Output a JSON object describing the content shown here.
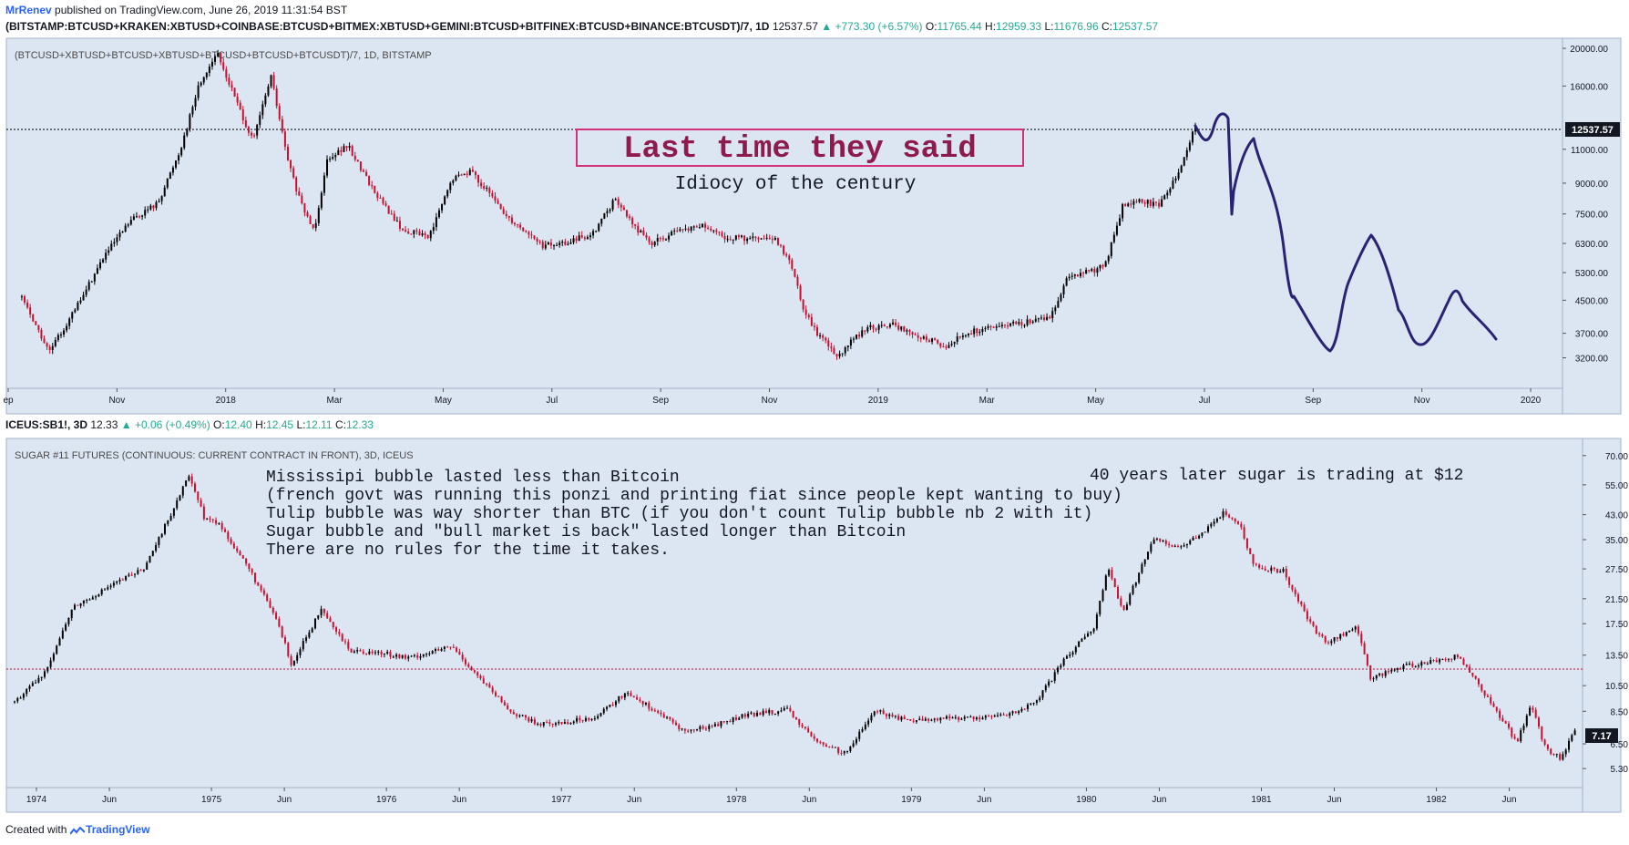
{
  "header": {
    "username": "MrRenev",
    "published": "published on TradingView.com, June 26, 2019 11:31:54 BST",
    "symbol1": "(BITSTAMP:BTCUSD+KRAKEN:XBTUSD+COINBASE:BTCUSD+BITMEX:XBTUSD+GEMINI:BTCUSD+BITFINEX:BTCUSD+BINANCE:BTCUSDT)/7, 1D",
    "price1": "12537.57",
    "change1": "▲ +773.30 (+6.57%)",
    "o1_label": "O:",
    "o1": "11765.44",
    "h1_label": "H:",
    "h1": "12959.33",
    "l1_label": "L:",
    "l1": "11676.96",
    "c1_label": "C:",
    "c1": "12537.57"
  },
  "pane1": {
    "title": "(BTCUSD+XBTUSD+BTCUSD+XBTUSD+BTCUSD+BTCUSD+BTCUSDT)/7, 1D, BITSTAMP",
    "price_label": "12537.57",
    "annotation_box": "Last time they said",
    "annotation_sub": "Idiocy of the century"
  },
  "header2": {
    "symbol": "ICEUS:SB1!, 3D",
    "price": "12.33",
    "change": "▲ +0.06 (+0.49%)",
    "o_label": "O:",
    "o": "12.40",
    "h_label": "H:",
    "h": "12.45",
    "l_label": "L:",
    "l": "12.11",
    "c_label": "C:",
    "c": "12.33"
  },
  "pane2": {
    "title": "SUGAR #11 FUTURES (CONTINUOUS: CURRENT CONTRACT IN FRONT), 3D, ICEUS",
    "price_label": "7.17",
    "notes": [
      "Mississipi bubble lasted less than Bitcoin",
      "(french govt was running this ponzi and printing fiat since people kept wanting to buy)",
      "Tulip bubble was way shorter than BTC (if you don't count Tulip bubble nb 2 with it)",
      "Sugar bubble and \"bull market is back\" lasted longer than Bitcoin",
      "There are no rules for the time it takes."
    ],
    "note_right": "40 years later sugar is trading at $12"
  },
  "footer": {
    "created": "Created with",
    "brand": "TradingView"
  },
  "colors": {
    "up": "#000000",
    "down": "#c8102e",
    "bg": "#dce6f2",
    "drawing": "#2a2272",
    "box": "#d2307a",
    "accent": "#22ab94"
  },
  "chart_data": [
    {
      "type": "candlestick",
      "title": "(BTCUSD+XBTUSD+BTCUSD+XBTUSD+BTCUSD+BTCUSD+BTCUSDT)/7, 1D, BITSTAMP",
      "x_ticks": [
        "ep",
        "Nov",
        "2018",
        "Mar",
        "May",
        "Jul",
        "Sep",
        "Nov",
        "2019",
        "Mar",
        "May",
        "Jul",
        "Sep",
        "Nov",
        "2020"
      ],
      "y_ticks": [
        20000,
        16000,
        11000,
        9000,
        7500,
        6300,
        5300,
        4500,
        3700,
        3200
      ],
      "y_scale": "log",
      "ylim": [
        2700,
        21000
      ],
      "current_price": 12537.57,
      "close_path": [
        [
          "2017-09",
          4600
        ],
        [
          "2017-09",
          3300
        ],
        [
          "2017-10",
          4300
        ],
        [
          "2017-10",
          5800
        ],
        [
          "2017-11",
          7200
        ],
        [
          "2017-11",
          8000
        ],
        [
          "2017-12",
          11000
        ],
        [
          "2017-12",
          16000
        ],
        [
          "2017-12",
          19500
        ],
        [
          "2018-01",
          15000
        ],
        [
          "2018-01",
          11500
        ],
        [
          "2018-01",
          17000
        ],
        [
          "2018-02",
          10500
        ],
        [
          "2018-02",
          8000
        ],
        [
          "2018-02",
          6800
        ],
        [
          "2018-02",
          10500
        ],
        [
          "2018-03",
          11200
        ],
        [
          "2018-03",
          8500
        ],
        [
          "2018-04",
          6800
        ],
        [
          "2018-04",
          6600
        ],
        [
          "2018-05",
          9200
        ],
        [
          "2018-05",
          9700
        ],
        [
          "2018-05",
          8500
        ],
        [
          "2018-06",
          7400
        ],
        [
          "2018-06",
          6800
        ],
        [
          "2018-06",
          6200
        ],
        [
          "2018-07",
          6300
        ],
        [
          "2018-07",
          6700
        ],
        [
          "2018-08",
          8200
        ],
        [
          "2018-08",
          7000
        ],
        [
          "2018-08",
          6300
        ],
        [
          "2018-09",
          6700
        ],
        [
          "2018-09",
          7000
        ],
        [
          "2018-10",
          6500
        ],
        [
          "2018-10",
          6500
        ],
        [
          "2018-10",
          6450
        ],
        [
          "2018-11",
          6400
        ],
        [
          "2018-11",
          5700
        ],
        [
          "2018-11",
          4300
        ],
        [
          "2018-11",
          3700
        ],
        [
          "2018-12",
          3250
        ],
        [
          "2018-12",
          3800
        ],
        [
          "2019-01",
          3900
        ],
        [
          "2019-01",
          3600
        ],
        [
          "2019-02",
          3450
        ],
        [
          "2019-02",
          3750
        ],
        [
          "2019-03",
          3850
        ],
        [
          "2019-03",
          3950
        ],
        [
          "2019-04",
          4100
        ],
        [
          "2019-04",
          5200
        ],
        [
          "2019-04",
          5300
        ],
        [
          "2019-05",
          5500
        ],
        [
          "2019-05",
          7900
        ],
        [
          "2019-05",
          8100
        ],
        [
          "2019-06",
          7900
        ],
        [
          "2019-06",
          9500
        ],
        [
          "2019-06",
          12537.57
        ]
      ]
    },
    {
      "type": "candlestick",
      "title": "SUGAR #11 FUTURES (CONTINUOUS: CURRENT CONTRACT IN FRONT), 3D, ICEUS",
      "x_ticks": [
        "1974",
        "Jun",
        "1975",
        "Jun",
        "1976",
        "Jun",
        "1977",
        "Jun",
        "1978",
        "Jun",
        "1979",
        "Jun",
        "1980",
        "Jun",
        "1981",
        "Jun",
        "1982",
        "Jun"
      ],
      "y_ticks": [
        70.0,
        55.0,
        43.0,
        35.0,
        27.5,
        21.5,
        17.5,
        13.5,
        10.5,
        8.5,
        6.5,
        5.3
      ],
      "y_scale": "log",
      "ylim": [
        4.6,
        80
      ],
      "reference_level": 12.33,
      "current_price": 7.17,
      "close_path": [
        [
          "1973-11",
          9.2
        ],
        [
          "1974-01",
          11.5
        ],
        [
          "1974-03",
          20
        ],
        [
          "1974-05",
          23
        ],
        [
          "1974-08",
          28
        ],
        [
          "1974-11",
          60
        ],
        [
          "1974-12",
          42
        ],
        [
          "1975-01",
          40
        ],
        [
          "1975-03",
          28
        ],
        [
          "1975-05",
          18
        ],
        [
          "1975-06",
          12.5
        ],
        [
          "1975-08",
          19.5
        ],
        [
          "1975-10",
          14
        ],
        [
          "1975-12",
          13.8
        ],
        [
          "1976-02",
          13.2
        ],
        [
          "1976-05",
          14.5
        ],
        [
          "1976-07",
          11
        ],
        [
          "1976-09",
          8.5
        ],
        [
          "1976-11",
          7.6
        ],
        [
          "1977-01",
          7.8
        ],
        [
          "1977-03",
          8.2
        ],
        [
          "1977-05",
          10
        ],
        [
          "1977-07",
          8.5
        ],
        [
          "1977-09",
          7.2
        ],
        [
          "1977-11",
          7.6
        ],
        [
          "1978-01",
          8.2
        ],
        [
          "1978-04",
          8.6
        ],
        [
          "1978-06",
          6.6
        ],
        [
          "1978-08",
          6.0
        ],
        [
          "1978-10",
          8.6
        ],
        [
          "1978-12",
          7.9
        ],
        [
          "1979-03",
          8.0
        ],
        [
          "1979-05",
          8.1
        ],
        [
          "1979-07",
          8.2
        ],
        [
          "1979-09",
          9.1
        ],
        [
          "1979-11",
          13
        ],
        [
          "1980-01",
          17
        ],
        [
          "1980-02",
          28
        ],
        [
          "1980-03",
          19
        ],
        [
          "1980-05",
          35
        ],
        [
          "1980-07",
          33
        ],
        [
          "1980-09",
          39
        ],
        [
          "1980-10",
          44
        ],
        [
          "1980-11",
          40
        ],
        [
          "1980-12",
          28
        ],
        [
          "1981-02",
          27
        ],
        [
          "1981-04",
          17
        ],
        [
          "1981-05",
          15
        ],
        [
          "1981-07",
          17
        ],
        [
          "1981-08",
          11.2
        ],
        [
          "1981-10",
          12.2
        ],
        [
          "1981-12",
          12.8
        ],
        [
          "1982-02",
          13.4
        ],
        [
          "1982-04",
          9.5
        ],
        [
          "1982-06",
          6.6
        ],
        [
          "1982-07",
          9.0
        ],
        [
          "1982-08",
          6.2
        ],
        [
          "1982-09",
          5.8
        ],
        [
          "1982-10",
          7.17
        ]
      ]
    }
  ]
}
